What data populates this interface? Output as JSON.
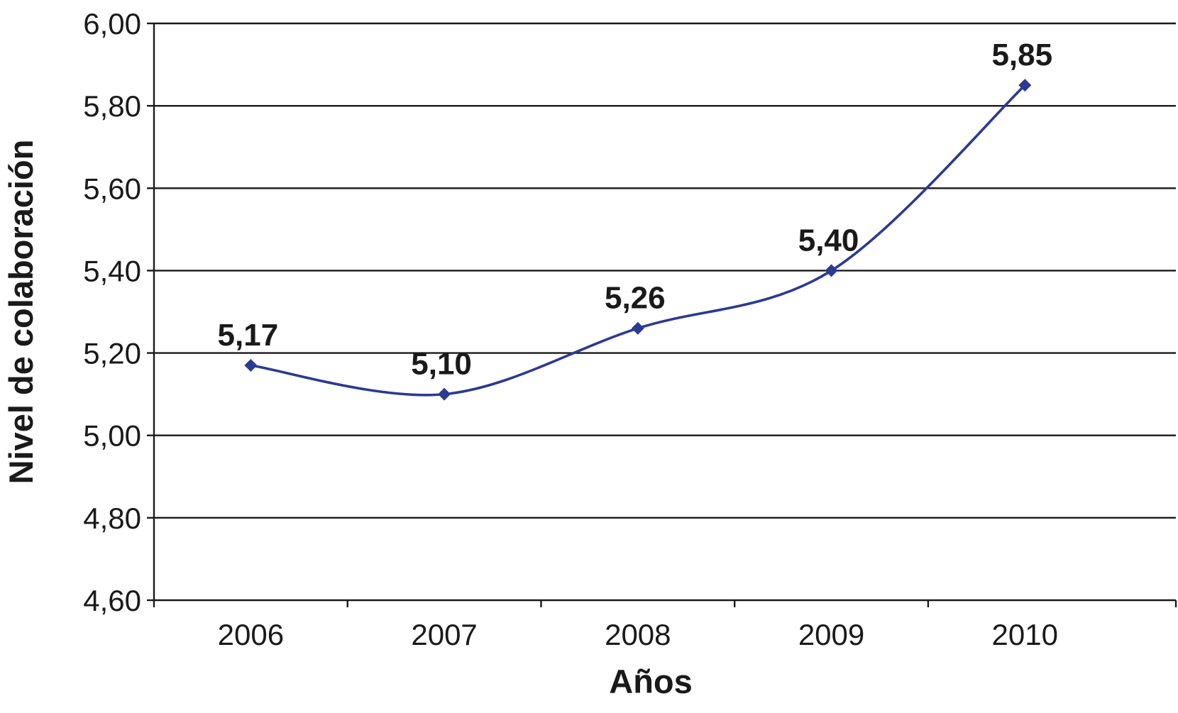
{
  "chart_data": {
    "type": "line",
    "title": "",
    "xlabel": "Años",
    "ylabel": "Nivel de colaboración",
    "categories": [
      "2006",
      "2007",
      "2008",
      "2009",
      "2010"
    ],
    "series": [
      {
        "values": [
          5.17,
          5.1,
          5.26,
          5.4,
          5.85
        ],
        "data_labels": [
          "5,17",
          "5,10",
          "5,26",
          "5,40",
          "5,85"
        ],
        "color": "#2b3a92",
        "marker": "diamond",
        "smooth": true
      }
    ],
    "ylim": [
      4.6,
      6.0
    ],
    "yticks": [
      4.6,
      4.8,
      5.0,
      5.2,
      5.4,
      5.6,
      5.8,
      6.0
    ],
    "ytick_labels": [
      "4,60",
      "4,80",
      "5,00",
      "5,20",
      "5,40",
      "5,60",
      "5,80",
      "6,00"
    ],
    "grid": true,
    "legend": "none"
  }
}
